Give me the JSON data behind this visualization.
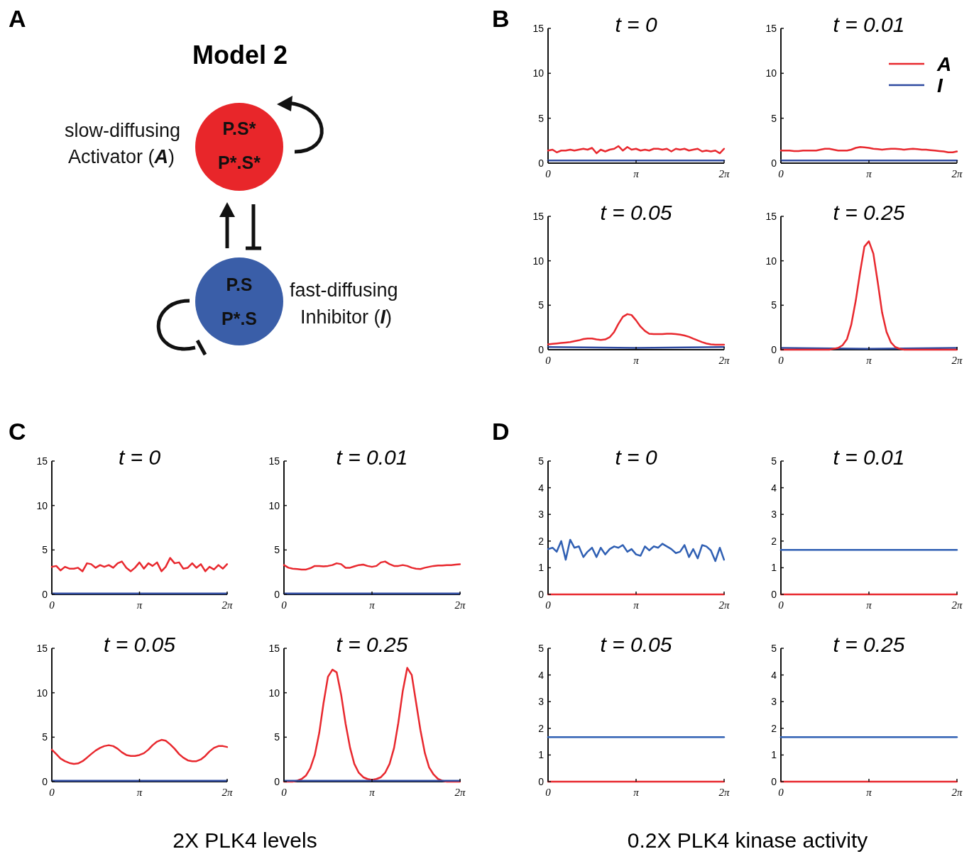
{
  "chart_data": [
    {
      "type": "other",
      "title": "Model 2",
      "annotations": [
        "A",
        "slow-diffusing",
        "Activator (A)",
        "P.S*",
        "P*.S*",
        "P.S",
        "P*.S",
        "fast-diffusing",
        "Inhibitor (I)"
      ]
    },
    {
      "type": "line",
      "title": "t = 0",
      "annotations": [
        "B"
      ],
      "xlim": [
        0,
        6.2832
      ],
      "xticks": [
        {
          "value": 0,
          "label": "0"
        },
        {
          "value": 3.1416,
          "label": "π"
        },
        {
          "value": 6.2832,
          "label": "2π"
        }
      ],
      "ylim": [
        0,
        15
      ],
      "yticks": [
        0,
        5,
        10,
        15
      ],
      "x": [
        0,
        0.16,
        0.31,
        0.47,
        0.63,
        0.79,
        0.94,
        1.1,
        1.26,
        1.41,
        1.57,
        1.73,
        1.88,
        2.04,
        2.2,
        2.36,
        2.51,
        2.67,
        2.83,
        2.98,
        3.14,
        3.3,
        3.46,
        3.61,
        3.77,
        3.93,
        4.08,
        4.24,
        4.4,
        4.56,
        4.71,
        4.87,
        5.03,
        5.18,
        5.34,
        5.5,
        5.65,
        5.81,
        5.97,
        6.13,
        6.28
      ],
      "series": [
        {
          "color": "#e8282e",
          "values": [
            1.4,
            1.5,
            1.2,
            1.4,
            1.4,
            1.5,
            1.4,
            1.5,
            1.6,
            1.5,
            1.7,
            1.1,
            1.5,
            1.3,
            1.5,
            1.6,
            1.9,
            1.4,
            1.8,
            1.5,
            1.6,
            1.4,
            1.5,
            1.4,
            1.6,
            1.6,
            1.5,
            1.6,
            1.3,
            1.6,
            1.5,
            1.6,
            1.4,
            1.5,
            1.6,
            1.3,
            1.4,
            1.3,
            1.4,
            1.1,
            1.6
          ]
        },
        {
          "color": "#2e4aa0",
          "x": [
            0,
            6.28
          ],
          "values": [
            0.3,
            0.3
          ]
        }
      ]
    },
    {
      "type": "line",
      "title": "t = 0.01",
      "legend": "top right",
      "xlim": [
        0,
        6.2832
      ],
      "xticks": [
        {
          "value": 0,
          "label": "0"
        },
        {
          "value": 3.1416,
          "label": "π"
        },
        {
          "value": 6.2832,
          "label": "2π"
        }
      ],
      "ylim": [
        0,
        15
      ],
      "yticks": [
        0,
        5,
        10,
        15
      ],
      "x": [
        0,
        0.16,
        0.31,
        0.47,
        0.63,
        0.79,
        0.94,
        1.1,
        1.26,
        1.41,
        1.57,
        1.73,
        1.88,
        2.04,
        2.2,
        2.36,
        2.51,
        2.67,
        2.83,
        2.98,
        3.14,
        3.3,
        3.46,
        3.61,
        3.77,
        3.93,
        4.08,
        4.24,
        4.4,
        4.56,
        4.71,
        4.87,
        5.03,
        5.18,
        5.34,
        5.5,
        5.65,
        5.81,
        5.97,
        6.13,
        6.28
      ],
      "series": [
        {
          "name": "A",
          "color": "#e8282e",
          "values": [
            1.4,
            1.4,
            1.4,
            1.35,
            1.35,
            1.4,
            1.4,
            1.4,
            1.4,
            1.5,
            1.6,
            1.6,
            1.5,
            1.4,
            1.4,
            1.4,
            1.5,
            1.7,
            1.8,
            1.75,
            1.7,
            1.6,
            1.55,
            1.5,
            1.55,
            1.6,
            1.6,
            1.55,
            1.5,
            1.55,
            1.6,
            1.55,
            1.5,
            1.5,
            1.45,
            1.4,
            1.35,
            1.3,
            1.2,
            1.2,
            1.3
          ]
        },
        {
          "name": "I",
          "color": "#2e4aa0",
          "x": [
            0,
            6.28
          ],
          "values": [
            0.3,
            0.3
          ]
        }
      ]
    },
    {
      "type": "line",
      "title": "t = 0.05",
      "xlim": [
        0,
        6.2832
      ],
      "xticks": [
        {
          "value": 0,
          "label": "0"
        },
        {
          "value": 3.1416,
          "label": "π"
        },
        {
          "value": 6.2832,
          "label": "2π"
        }
      ],
      "ylim": [
        0,
        15
      ],
      "yticks": [
        0,
        5,
        10,
        15
      ],
      "x": [
        0,
        0.16,
        0.31,
        0.47,
        0.63,
        0.79,
        0.94,
        1.1,
        1.26,
        1.41,
        1.57,
        1.73,
        1.88,
        2.04,
        2.2,
        2.36,
        2.51,
        2.67,
        2.83,
        2.98,
        3.14,
        3.3,
        3.46,
        3.61,
        3.77,
        3.93,
        4.08,
        4.24,
        4.4,
        4.56,
        4.71,
        4.87,
        5.03,
        5.18,
        5.34,
        5.5,
        5.65,
        5.81,
        5.97,
        6.13,
        6.28
      ],
      "series": [
        {
          "color": "#e8282e",
          "values": [
            0.6,
            0.65,
            0.7,
            0.75,
            0.8,
            0.85,
            0.95,
            1.05,
            1.2,
            1.25,
            1.25,
            1.15,
            1.1,
            1.15,
            1.4,
            2.0,
            2.9,
            3.7,
            4.0,
            3.9,
            3.3,
            2.6,
            2.1,
            1.8,
            1.75,
            1.75,
            1.75,
            1.8,
            1.8,
            1.75,
            1.7,
            1.6,
            1.45,
            1.25,
            1.05,
            0.85,
            0.7,
            0.6,
            0.55,
            0.55,
            0.55
          ]
        },
        {
          "color": "#2e4aa0",
          "x": [
            0,
            3.14,
            6.28
          ],
          "values": [
            0.3,
            0.2,
            0.3
          ]
        }
      ]
    },
    {
      "type": "line",
      "title": "t = 0.25",
      "xlim": [
        0,
        6.2832
      ],
      "xticks": [
        {
          "value": 0,
          "label": "0"
        },
        {
          "value": 3.1416,
          "label": "π"
        },
        {
          "value": 6.2832,
          "label": "2π"
        }
      ],
      "ylim": [
        0,
        15
      ],
      "yticks": [
        0,
        5,
        10,
        15
      ],
      "x": [
        0,
        0.16,
        0.31,
        0.47,
        0.63,
        0.79,
        0.94,
        1.1,
        1.26,
        1.41,
        1.57,
        1.73,
        1.88,
        2.04,
        2.2,
        2.36,
        2.51,
        2.67,
        2.83,
        2.98,
        3.14,
        3.3,
        3.46,
        3.61,
        3.77,
        3.93,
        4.08,
        4.24,
        4.4,
        4.56,
        4.71,
        4.87,
        5.03,
        5.18,
        5.34,
        5.5,
        5.65,
        5.81,
        5.97,
        6.13,
        6.28
      ],
      "series": [
        {
          "color": "#2e4aa0",
          "x": [
            0,
            3.14,
            6.28
          ],
          "values": [
            0.2,
            0.1,
            0.2
          ]
        },
        {
          "color": "#e8282e",
          "values": [
            0,
            0,
            0,
            0,
            0,
            0,
            0,
            0,
            0,
            0,
            0,
            0,
            0.1,
            0.2,
            0.5,
            1.2,
            2.8,
            5.5,
            8.8,
            11.6,
            12.2,
            10.8,
            7.5,
            4.2,
            2.0,
            0.8,
            0.3,
            0.1,
            0,
            0,
            0,
            0,
            0,
            0,
            0,
            0,
            0,
            0,
            0,
            0,
            0
          ]
        }
      ]
    },
    {
      "type": "line",
      "title": "t = 0",
      "annotations": [
        "C",
        "2X PLK4 levels"
      ],
      "xlim": [
        0,
        6.2832
      ],
      "xticks": [
        {
          "value": 0,
          "label": "0"
        },
        {
          "value": 3.1416,
          "label": "π"
        },
        {
          "value": 6.2832,
          "label": "2π"
        }
      ],
      "ylim": [
        0,
        15
      ],
      "yticks": [
        0,
        5,
        10,
        15
      ],
      "x": [
        0,
        0.16,
        0.31,
        0.47,
        0.63,
        0.79,
        0.94,
        1.1,
        1.26,
        1.41,
        1.57,
        1.73,
        1.88,
        2.04,
        2.2,
        2.36,
        2.51,
        2.67,
        2.83,
        2.98,
        3.14,
        3.3,
        3.46,
        3.61,
        3.77,
        3.93,
        4.08,
        4.24,
        4.4,
        4.56,
        4.71,
        4.87,
        5.03,
        5.18,
        5.34,
        5.5,
        5.65,
        5.81,
        5.97,
        6.13,
        6.28
      ],
      "series": [
        {
          "color": "#e8282e",
          "values": [
            3.1,
            3.2,
            2.7,
            3.1,
            2.9,
            2.9,
            3.0,
            2.6,
            3.5,
            3.4,
            3.0,
            3.3,
            3.1,
            3.3,
            3.0,
            3.5,
            3.7,
            3.0,
            2.6,
            3.0,
            3.6,
            2.9,
            3.5,
            3.2,
            3.6,
            2.6,
            3.1,
            4.1,
            3.5,
            3.6,
            2.9,
            3.0,
            3.5,
            3.0,
            3.4,
            2.6,
            3.1,
            2.8,
            3.3,
            2.9,
            3.4
          ]
        },
        {
          "color": "#2e4aa0",
          "x": [
            0,
            6.28
          ],
          "values": [
            0.1,
            0.1
          ]
        }
      ]
    },
    {
      "type": "line",
      "title": "t = 0.01",
      "xlim": [
        0,
        6.2832
      ],
      "xticks": [
        {
          "value": 0,
          "label": "0"
        },
        {
          "value": 3.1416,
          "label": "π"
        },
        {
          "value": 6.2832,
          "label": "2π"
        }
      ],
      "ylim": [
        0,
        15
      ],
      "yticks": [
        0,
        5,
        10,
        15
      ],
      "x": [
        0,
        0.16,
        0.31,
        0.47,
        0.63,
        0.79,
        0.94,
        1.1,
        1.26,
        1.41,
        1.57,
        1.73,
        1.88,
        2.04,
        2.2,
        2.36,
        2.51,
        2.67,
        2.83,
        2.98,
        3.14,
        3.3,
        3.46,
        3.61,
        3.77,
        3.93,
        4.08,
        4.24,
        4.4,
        4.56,
        4.71,
        4.87,
        5.03,
        5.18,
        5.34,
        5.5,
        5.65,
        5.81,
        5.97,
        6.13,
        6.28
      ],
      "series": [
        {
          "color": "#e8282e",
          "values": [
            3.3,
            3.0,
            2.9,
            2.85,
            2.8,
            2.8,
            2.95,
            3.2,
            3.2,
            3.15,
            3.2,
            3.3,
            3.5,
            3.4,
            3.0,
            3.0,
            3.15,
            3.3,
            3.35,
            3.2,
            3.1,
            3.2,
            3.6,
            3.7,
            3.4,
            3.2,
            3.2,
            3.3,
            3.2,
            3.0,
            2.9,
            2.85,
            3.0,
            3.1,
            3.2,
            3.25,
            3.25,
            3.3,
            3.3,
            3.35,
            3.4
          ]
        },
        {
          "color": "#2e4aa0",
          "x": [
            0,
            6.28
          ],
          "values": [
            0.1,
            0.1
          ]
        }
      ]
    },
    {
      "type": "line",
      "title": "t = 0.05",
      "xlim": [
        0,
        6.2832
      ],
      "xticks": [
        {
          "value": 0,
          "label": "0"
        },
        {
          "value": 3.1416,
          "label": "π"
        },
        {
          "value": 6.2832,
          "label": "2π"
        }
      ],
      "ylim": [
        0,
        15
      ],
      "yticks": [
        0,
        5,
        10,
        15
      ],
      "x": [
        0,
        0.16,
        0.31,
        0.47,
        0.63,
        0.79,
        0.94,
        1.1,
        1.26,
        1.41,
        1.57,
        1.73,
        1.88,
        2.04,
        2.2,
        2.36,
        2.51,
        2.67,
        2.83,
        2.98,
        3.14,
        3.3,
        3.46,
        3.61,
        3.77,
        3.93,
        4.08,
        4.24,
        4.4,
        4.56,
        4.71,
        4.87,
        5.03,
        5.18,
        5.34,
        5.5,
        5.65,
        5.81,
        5.97,
        6.13,
        6.28
      ],
      "series": [
        {
          "color": "#e8282e",
          "values": [
            3.6,
            3.1,
            2.6,
            2.3,
            2.1,
            2.0,
            2.05,
            2.3,
            2.7,
            3.1,
            3.5,
            3.8,
            4.0,
            4.1,
            4.0,
            3.7,
            3.3,
            3.0,
            2.9,
            2.9,
            3.0,
            3.2,
            3.6,
            4.1,
            4.5,
            4.7,
            4.6,
            4.2,
            3.7,
            3.1,
            2.7,
            2.4,
            2.3,
            2.3,
            2.5,
            2.9,
            3.4,
            3.8,
            4.0,
            4.0,
            3.9
          ]
        },
        {
          "color": "#2e4aa0",
          "x": [
            0,
            6.28
          ],
          "values": [
            0.1,
            0.1
          ]
        }
      ]
    },
    {
      "type": "line",
      "title": "t = 0.25",
      "xlim": [
        0,
        6.2832
      ],
      "xticks": [
        {
          "value": 0,
          "label": "0"
        },
        {
          "value": 3.1416,
          "label": "π"
        },
        {
          "value": 6.2832,
          "label": "2π"
        }
      ],
      "ylim": [
        0,
        15
      ],
      "yticks": [
        0,
        5,
        10,
        15
      ],
      "x": [
        0,
        0.16,
        0.31,
        0.47,
        0.63,
        0.79,
        0.94,
        1.1,
        1.26,
        1.41,
        1.57,
        1.73,
        1.88,
        2.04,
        2.2,
        2.36,
        2.51,
        2.67,
        2.83,
        2.98,
        3.14,
        3.3,
        3.46,
        3.61,
        3.77,
        3.93,
        4.08,
        4.24,
        4.4,
        4.56,
        4.71,
        4.87,
        5.03,
        5.18,
        5.34,
        5.5,
        5.65,
        5.81,
        5.97,
        6.13,
        6.28
      ],
      "series": [
        {
          "color": "#e8282e",
          "values": [
            0,
            0,
            0,
            0.1,
            0.3,
            0.7,
            1.5,
            3.0,
            5.5,
            8.8,
            11.8,
            12.6,
            12.3,
            9.8,
            6.5,
            3.8,
            2.0,
            1.0,
            0.5,
            0.3,
            0.2,
            0.3,
            0.5,
            1.0,
            2.0,
            3.8,
            6.6,
            10.2,
            12.8,
            12.0,
            9.0,
            5.8,
            3.2,
            1.6,
            0.8,
            0.3,
            0.1,
            0,
            0,
            0,
            0
          ]
        },
        {
          "color": "#2e4aa0",
          "x": [
            0,
            6.28
          ],
          "values": [
            0.1,
            0.1
          ]
        }
      ]
    },
    {
      "type": "line",
      "title": "t = 0",
      "annotations": [
        "D",
        "0.2X PLK4 kinase activity"
      ],
      "xlim": [
        0,
        6.2832
      ],
      "xticks": [
        {
          "value": 0,
          "label": "0"
        },
        {
          "value": 3.1416,
          "label": "π"
        },
        {
          "value": 6.2832,
          "label": "2π"
        }
      ],
      "ylim": [
        0,
        5
      ],
      "yticks": [
        0,
        1,
        2,
        3,
        4,
        5
      ],
      "x": [
        0,
        0.16,
        0.31,
        0.47,
        0.63,
        0.79,
        0.94,
        1.1,
        1.26,
        1.41,
        1.57,
        1.73,
        1.88,
        2.04,
        2.2,
        2.36,
        2.51,
        2.67,
        2.83,
        2.98,
        3.14,
        3.3,
        3.46,
        3.61,
        3.77,
        3.93,
        4.08,
        4.24,
        4.4,
        4.56,
        4.71,
        4.87,
        5.03,
        5.18,
        5.34,
        5.5,
        5.65,
        5.81,
        5.97,
        6.13,
        6.28
      ],
      "series": [
        {
          "color": "#e8282e",
          "x": [
            0,
            6.28
          ],
          "values": [
            0,
            0
          ]
        },
        {
          "color": "#2f5fb3",
          "values": [
            1.7,
            1.75,
            1.6,
            2.0,
            1.3,
            2.05,
            1.75,
            1.8,
            1.4,
            1.6,
            1.75,
            1.4,
            1.75,
            1.5,
            1.7,
            1.8,
            1.75,
            1.85,
            1.6,
            1.7,
            1.5,
            1.45,
            1.8,
            1.65,
            1.8,
            1.75,
            1.9,
            1.8,
            1.7,
            1.55,
            1.6,
            1.85,
            1.4,
            1.7,
            1.35,
            1.85,
            1.8,
            1.65,
            1.25,
            1.75,
            1.3
          ]
        }
      ]
    },
    {
      "type": "line",
      "title": "t = 0.01",
      "xlim": [
        0,
        6.2832
      ],
      "xticks": [
        {
          "value": 0,
          "label": "0"
        },
        {
          "value": 3.1416,
          "label": "π"
        },
        {
          "value": 6.2832,
          "label": "2π"
        }
      ],
      "ylim": [
        0,
        5
      ],
      "yticks": [
        0,
        1,
        2,
        3,
        4,
        5
      ],
      "series": [
        {
          "color": "#e8282e",
          "x": [
            0,
            6.28
          ],
          "values": [
            0,
            0
          ]
        },
        {
          "color": "#2f5fb3",
          "x": [
            0,
            6.28
          ],
          "values": [
            1.67,
            1.67
          ]
        }
      ]
    },
    {
      "type": "line",
      "title": "t = 0.05",
      "xlim": [
        0,
        6.2832
      ],
      "xticks": [
        {
          "value": 0,
          "label": "0"
        },
        {
          "value": 3.1416,
          "label": "π"
        },
        {
          "value": 6.2832,
          "label": "2π"
        }
      ],
      "ylim": [
        0,
        5
      ],
      "yticks": [
        0,
        1,
        2,
        3,
        4,
        5
      ],
      "series": [
        {
          "color": "#e8282e",
          "x": [
            0,
            6.28
          ],
          "values": [
            0,
            0
          ]
        },
        {
          "color": "#2f5fb3",
          "x": [
            0,
            6.28
          ],
          "values": [
            1.67,
            1.67
          ]
        }
      ]
    },
    {
      "type": "line",
      "title": "t = 0.25",
      "xlim": [
        0,
        6.2832
      ],
      "xticks": [
        {
          "value": 0,
          "label": "0"
        },
        {
          "value": 3.1416,
          "label": "π"
        },
        {
          "value": 6.2832,
          "label": "2π"
        }
      ],
      "ylim": [
        0,
        5
      ],
      "yticks": [
        0,
        1,
        2,
        3,
        4,
        5
      ],
      "series": [
        {
          "color": "#e8282e",
          "x": [
            0,
            6.28
          ],
          "values": [
            0,
            0
          ]
        },
        {
          "color": "#2f5fb3",
          "x": [
            0,
            6.28
          ],
          "values": [
            1.67,
            1.67
          ]
        }
      ]
    }
  ]
}
